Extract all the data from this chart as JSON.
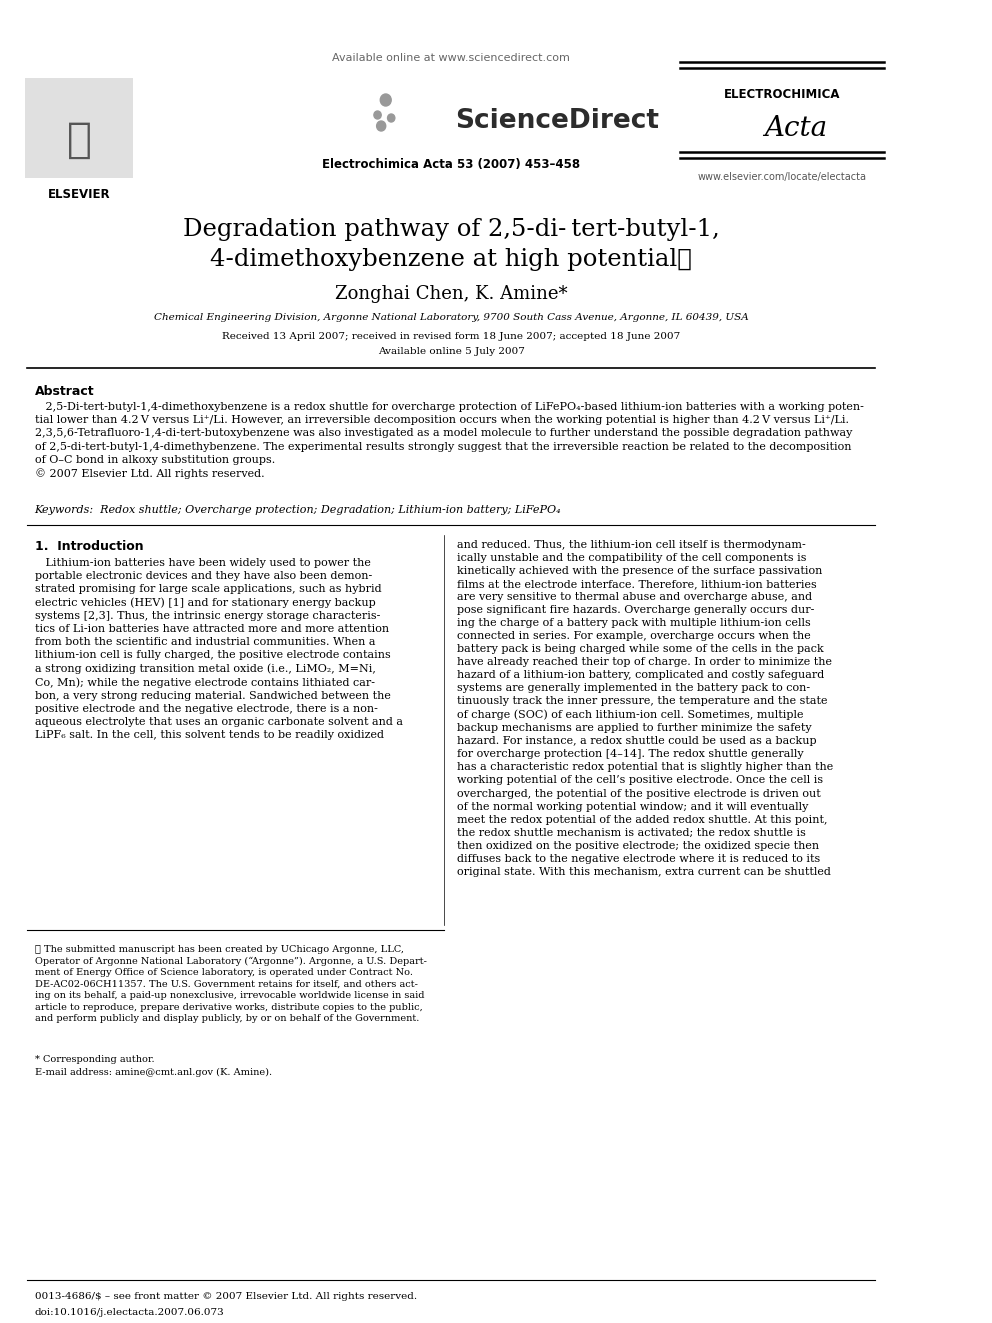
{
  "title_line1": "Degradation pathway of 2,5-di-",
  "title_italic": "tert",
  "title_line1b": "-butyl-1,",
  "title_line2": "4-dimethoxybenzene at high potential",
  "title_star": "★",
  "authors": "Zonghai Chen, K. Amine",
  "author_star": "*",
  "affiliation": "Chemical Engineering Division, Argonne National Laboratory, 9700 South Cass Avenue, Argonne, IL 60439, USA",
  "received": "Received 13 April 2007; received in revised form 18 June 2007; accepted 18 June 2007",
  "available": "Available online 5 July 2007",
  "abstract_title": "Abstract",
  "abstract_text": "2,5-Di-tert-butyl-1,4-dimethoxybenzene is a redox shuttle for overcharge protection of LiFePO₄-based lithium-ion batteries with a working poten-\ntial lower than 4.2 V versus Li⁺/Li. However, an irreversible decomposition occurs when the working potential is higher than 4.2 V versus Li⁺/Li.\n2,3,5,6-Tetrafluoro-1,4-di-tert-butoxybenzene was also investigated as a model molecule to further understand the possible degradation pathway\nof 2,5-di-tert-butyl-1,4-dimethybenzene. The experimental results strongly suggest that the irreversible reaction be related to the decomposition\nof O–C bond in alkoxy substitution groups.\n© 2007 Elsevier Ltd. All rights reserved.",
  "keywords_label": "Keywords:",
  "keywords": "Redox shuttle; Overcharge protection; Degradation; Lithium-ion battery; LiFePO₄",
  "section1_title": "1. Introduction",
  "col1_text": "Lithium-ion batteries have been widely used to power the portable electronic devices and they have also been demon-strated promising for large scale applications, such as hybrid electric vehicles (HEV) [1] and for stationary energy backup systems [2,3]. Thus, the intrinsic energy storage characteris-tics of Li-ion batteries have attracted more and more attention from both the scientific and industrial communities. When a lithium-ion cell is fully charged, the positive electrode contains a strong oxidizing transition metal oxide (i.e., LiMO₂, M=Ni, Co, Mn); while the negative electrode contains lithiated car-bon, a very strong reducing material. Sandwiched between the positive electrode and the negative electrode, there is a non-aqueous electrolyte that uses an organic carbonate solvent and a LiPF₆ salt. In the cell, this solvent tends to be readily oxidized",
  "col2_text": "and reduced. Thus, the lithium-ion cell itself is thermodynam-ically unstable and the compatibility of the cell components is kinetically achieved with the presence of the surface passivation films at the electrode interface. Therefore, lithium-ion batteries are very sensitive to thermal abuse and overcharge abuse, and pose significant fire hazards. Overcharge generally occurs dur-ing the charge of a battery pack with multiple lithium-ion cells connected in series. For example, overcharge occurs when the battery pack is being charged while some of the cells in the pack have already reached their top of charge. In order to minimize the hazard of a lithium-ion battery, complicated and costly safeguard systems are generally implemented in the battery pack to con-tinuously track the inner pressure, the temperature and the state of charge (SOC) of each lithium-ion cell. Sometimes, multiple backup mechanisms are applied to further minimize the safety hazard. For instance, a redox shuttle could be used as a backup for overcharge protection [4–14]. The redox shuttle generally has a characteristic redox potential that is slightly higher than the working potential of the cell’s positive electrode. Once the cell is overcharged, the potential of the positive electrode is driven out of the normal working potential window; and it will eventually meet the redox potential of the added redox shuttle. At this point, the redox shuttle mechanism is activated; the redox shuttle is then oxidized on the positive electrode; the oxidized specie then diffuses back to the negative electrode where it is reduced to its original state. With this mechanism, extra current can be shuttled",
  "footnote_star_text": "★ The submitted manuscript has been created by UChicago Argonne, LLC, Operator of Argonne National Laboratory (“Argonne”). Argonne, a U.S. Depart-ment of Energy Office of Science laboratory, is operated under Contract No. DE-AC02-06CH11357. The U.S. Government retains for itself, and others act-ing on its behalf, a paid-up nonexclusive, irrevocable worldwide license in said article to reproduce, prepare derivative works, distribute copies to the public, and perform publicly and display publicly, by or on behalf of the Government.",
  "footnote_corr": "* Corresponding author.",
  "footnote_email": "E-mail address: amine@cmt.anl.gov (K. Amine).",
  "footer_issn": "0013-4686/$ – see front matter © 2007 Elsevier Ltd. All rights reserved.",
  "footer_doi": "doi:10.1016/j.electacta.2007.06.073",
  "journal_info": "Electrochimica Acta 53 (2007) 453–458",
  "available_online": "Available online at www.sciencedirect.com",
  "journal_name": "ELECTROCHIMICA",
  "journal_name2": "Acta",
  "journal_website": "www.elsevier.com/locate/electacta",
  "elsevier_text": "ELSEVIER",
  "bg_color": "#ffffff",
  "text_color": "#000000"
}
